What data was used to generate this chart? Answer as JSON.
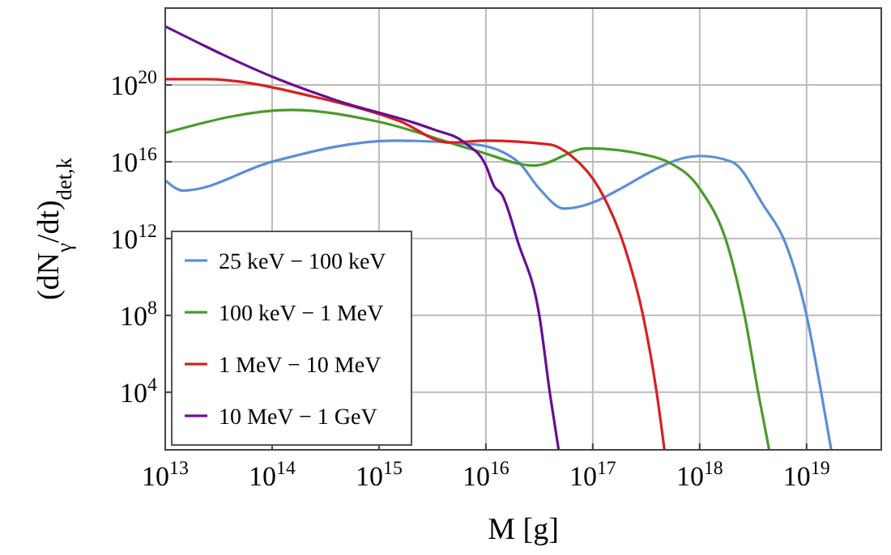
{
  "chart_data": {
    "type": "line",
    "xlabel": "M [g]",
    "ylabel": "(dN$_{γ}$/dt)$_{det,k}$",
    "log": "xy",
    "grid": true,
    "legend": "bottom left",
    "xlim": [
      10000000000000.0,
      5e+19
    ],
    "ylim": [
      10.0,
      1e+24
    ],
    "xticks": [
      {
        "value": 10000000000000.0,
        "label": "10$^{13}$"
      },
      {
        "value": 100000000000000.0,
        "label": "10$^{14}$"
      },
      {
        "value": 1000000000000000.0,
        "label": "10$^{15}$"
      },
      {
        "value": 1e+16,
        "label": "10$^{16}$"
      },
      {
        "value": 1e+17,
        "label": "10$^{17}$"
      },
      {
        "value": 1e+18,
        "label": "10$^{18}$"
      },
      {
        "value": 1e+19,
        "label": "10$^{19}$"
      }
    ],
    "yticks": [
      {
        "value": 10000.0,
        "label": "10$^{4}$"
      },
      {
        "value": 100000000.0,
        "label": "10$^{8}$"
      },
      {
        "value": 1000000000000.0,
        "label": "10$^{12}$"
      },
      {
        "value": 1e+16,
        "label": "10$^{16}$"
      },
      {
        "value": 1e+20,
        "label": "10$^{20}$"
      }
    ],
    "series": [
      {
        "name": "25 keV − 100 keV",
        "color": "#5b8fd6",
        "x": [
          10000000000000.0,
          14800000000000.0,
          100000000000000.0,
          1380000000000000.0,
          7940000000000000.0,
          2e+16,
          3.16e+16,
          5.37e+16,
          1e+18,
          2e+18,
          3.98e+18,
          6.31e+18,
          1e+19,
          1.38e+19,
          1.7e+19
        ],
        "values": [
          1070000000000000.0,
          316000000000000.0,
          1e+16,
          1.26e+17,
          7.94e+16,
          1e+16,
          398000000000000.0,
          36300000000000.0,
          2e+16,
          1e+16,
          50100000000000.0,
          631000000000.0,
          100000000.0,
          7940.0,
          10.0
        ]
      },
      {
        "name": "100 keV − 1 MeV",
        "color": "#4c9a2a",
        "x": [
          10000000000000.0,
          151000000000000.0,
          955000000000000.0,
          7940000000000000.0,
          2.82e+16,
          8.91e+16,
          3.16e+17,
          5.01e+17,
          1e+18,
          1.86e+18,
          2.63e+18,
          3.55e+18,
          4.47e+18
        ],
        "values": [
          3.16e+17,
          5.01e+18,
          1.26e+18,
          3.98e+16,
          6310000000000000.0,
          5.01e+16,
          2.24e+16,
          1e+16,
          398000000000000.0,
          316000000000.0,
          100000000.0,
          7940.0,
          10.0
        ]
      },
      {
        "name": "1 MeV − 10 MeV",
        "color": "#d62020",
        "x": [
          10000000000000.0,
          24000000000000.0,
          240000000000000.0,
          1580000000000000.0,
          4470000000000000.0,
          1e+16,
          3.98e+16,
          6.31e+16,
          1.15e+17,
          2e+17,
          2.95e+17,
          3.98e+17,
          4.68e+17
        ],
        "values": [
          2e+20,
          2e+20,
          2.51e+19,
          1.26e+18,
          1e+17,
          1.26e+17,
          7.94e+16,
          2e+16,
          398000000000000.0,
          316000000000.0,
          100000000.0,
          7940.0,
          10.0
        ]
      },
      {
        "name": "10 MeV − 1 GeV",
        "color": "#6a0d91",
        "x": [
          10000000000000.0,
          120000000000000.0,
          398000000000000.0,
          3160000000000000.0,
          6310000000000000.0,
          1e+16,
          1.2e+16,
          1.41e+16,
          2e+16,
          3.16e+16,
          3.98e+16,
          4.79e+16
        ],
        "values": [
          1.12e+23,
          1.78e+20,
          1.58e+19,
          5.01e+17,
          1e+17,
          6310000000000000.0,
          501000000000000.0,
          200000000000000.0,
          631000000000.0,
          100000000.0,
          7940.0,
          10.0
        ]
      }
    ]
  }
}
